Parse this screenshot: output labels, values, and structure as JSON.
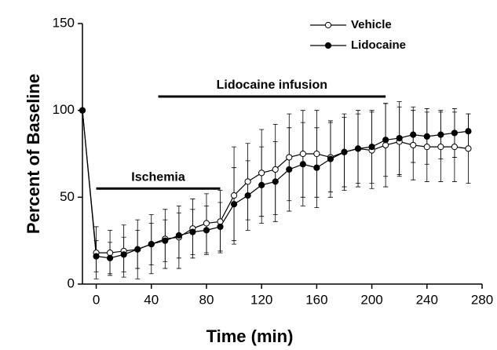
{
  "chart_data": {
    "type": "line",
    "xlabel": "Time (min)",
    "ylabel": "Percent of Baseline",
    "x": [
      -10,
      0,
      10,
      20,
      30,
      40,
      50,
      60,
      70,
      80,
      90,
      100,
      110,
      120,
      130,
      140,
      150,
      160,
      170,
      180,
      190,
      200,
      210,
      220,
      230,
      240,
      250,
      260,
      270
    ],
    "series": [
      {
        "name": "Vehicle",
        "color": "#000000",
        "marker": "open",
        "values": [
          100,
          18,
          18,
          19,
          20,
          23,
          26,
          27,
          32,
          35,
          36,
          51,
          59,
          64,
          66,
          73,
          75,
          75,
          73,
          76,
          78,
          77,
          80,
          82,
          80,
          79,
          79,
          79,
          78
        ],
        "errors": [
          0,
          15,
          13,
          15,
          17,
          17,
          17,
          18,
          17,
          17,
          18,
          28,
          22,
          25,
          26,
          25,
          25,
          25,
          20,
          20,
          20,
          22,
          24,
          20,
          20,
          20,
          20,
          20,
          20
        ]
      },
      {
        "name": "Lidocaine",
        "color": "#000000",
        "marker": "filled",
        "values": [
          100,
          16,
          15,
          17,
          20,
          23,
          25,
          28,
          30,
          31,
          33,
          46,
          51,
          57,
          59,
          66,
          69,
          67,
          72,
          76,
          78,
          79,
          83,
          84,
          86,
          85,
          86,
          87,
          88
        ],
        "errors": [
          0,
          9,
          9,
          10,
          11,
          12,
          12,
          13,
          13,
          14,
          14,
          21,
          20,
          22,
          23,
          24,
          24,
          23,
          22,
          22,
          22,
          21,
          21,
          21,
          16,
          16,
          14,
          14,
          10
        ]
      }
    ],
    "annotations": [
      {
        "text": "Ischemia",
        "x": [
          0,
          90
        ],
        "y": 55
      },
      {
        "text": "Lidocaine infusion",
        "x": [
          45,
          210
        ],
        "y": 108
      }
    ],
    "xlim": [
      -10,
      280
    ],
    "xticks": [
      0,
      40,
      80,
      120,
      160,
      200,
      240,
      280
    ],
    "ylim": [
      0,
      150
    ],
    "yticks": [
      0,
      50,
      100,
      150
    ],
    "grid": false,
    "legend": "upper right"
  }
}
